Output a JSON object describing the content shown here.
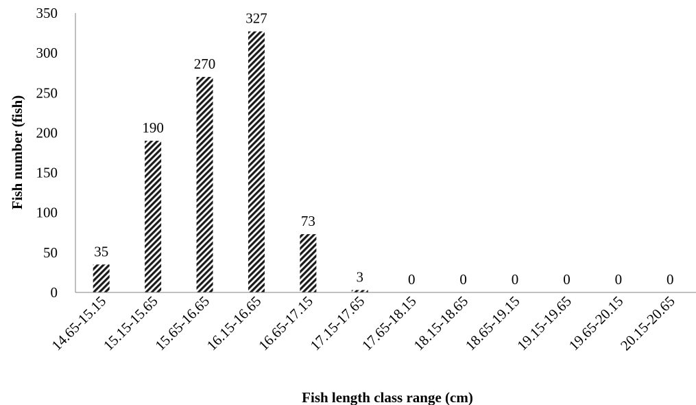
{
  "chart_data": {
    "type": "bar",
    "categories": [
      "14.65-15.15",
      "15.15-15.65",
      "15.65-16.65",
      "16.15-16.65",
      "16.65-17.15",
      "17.15-17.65",
      "17.65-18.15",
      "18.15-18.65",
      "18.65-19.15",
      "19.15-19.65",
      "19.65-20.15",
      "20.15-20.65"
    ],
    "values": [
      35,
      190,
      270,
      327,
      73,
      3,
      0,
      0,
      0,
      0,
      0,
      0
    ],
    "data_labels": [
      "35",
      "190",
      "270",
      "327",
      "73",
      "3",
      "0",
      "0",
      "0",
      "0",
      "0",
      "0"
    ],
    "y_ticks": [
      0,
      50,
      100,
      150,
      200,
      250,
      300,
      350
    ],
    "ylim": [
      0,
      350
    ],
    "xlabel": "Fish length class range (cm)",
    "ylabel": "Fish number (fish)",
    "grid": false,
    "bar_pattern": "diagonal-hatch",
    "colors": {
      "bar_fill": "#ffffff",
      "bar_hatch": "#1a1a1a",
      "axis": "#808080"
    }
  }
}
